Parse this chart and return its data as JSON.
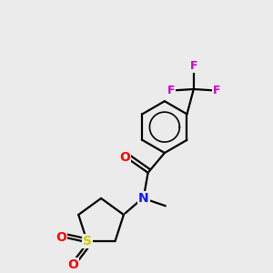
{
  "background_color": "#ebebeb",
  "atom_colors": {
    "C": "#000000",
    "N": "#1414ff",
    "O": "#ff0000",
    "S": "#cccc00",
    "F": "#cc00cc"
  },
  "bond_color": "#000000",
  "figsize": [
    3.0,
    3.0
  ],
  "dpi": 100,
  "bond_lw": 1.6,
  "font_size_atom": 10,
  "font_size_f": 9
}
